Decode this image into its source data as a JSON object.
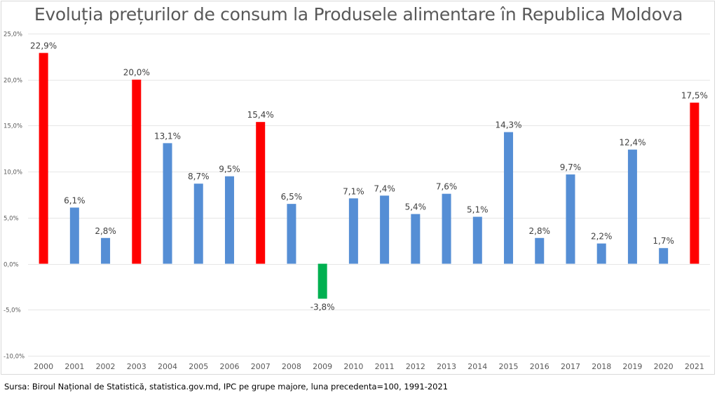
{
  "chart_data": {
    "type": "bar",
    "title": "Evoluția prețurilor de consum la Produsele alimentare în Republica Moldova",
    "xlabel": "",
    "ylabel": "",
    "ylim": [
      -10,
      25
    ],
    "yticks": [
      25,
      20,
      15,
      10,
      5,
      0,
      -5,
      -10
    ],
    "ytick_labels": [
      "25,0%",
      "20,0%",
      "15,0%",
      "10,0%",
      "5,0%",
      "0,0%",
      "-5,0%",
      "-10,0%"
    ],
    "grid": true,
    "legend": "none",
    "categories": [
      "2000",
      "2001",
      "2002",
      "2003",
      "2004",
      "2005",
      "2006",
      "2007",
      "2008",
      "2009",
      "2010",
      "2011",
      "2012",
      "2013",
      "2014",
      "2015",
      "2016",
      "2017",
      "2018",
      "2019",
      "2020",
      "2021"
    ],
    "values": [
      22.9,
      6.1,
      2.8,
      20.0,
      13.1,
      8.7,
      9.5,
      15.4,
      6.5,
      -3.8,
      7.1,
      7.4,
      5.4,
      7.6,
      5.1,
      14.3,
      2.8,
      9.7,
      2.2,
      12.4,
      1.7,
      17.5
    ],
    "data_labels": [
      "22,9%",
      "6,1%",
      "2,8%",
      "20,0%",
      "13,1%",
      "8,7%",
      "9,5%",
      "15,4%",
      "6,5%",
      "-3,8%",
      "7,1%",
      "7,4%",
      "5,4%",
      "7,6%",
      "5,1%",
      "14,3%",
      "2,8%",
      "9,7%",
      "2,2%",
      "12,4%",
      "1,7%",
      "17,5%"
    ],
    "bar_colors": [
      "#ff0000",
      "#558ed5",
      "#558ed5",
      "#ff0000",
      "#558ed5",
      "#558ed5",
      "#558ed5",
      "#ff0000",
      "#558ed5",
      "#00b050",
      "#558ed5",
      "#558ed5",
      "#558ed5",
      "#558ed5",
      "#558ed5",
      "#558ed5",
      "#558ed5",
      "#558ed5",
      "#558ed5",
      "#558ed5",
      "#558ed5",
      "#ff0000"
    ]
  },
  "colors": {
    "highlight": "#ff0000",
    "normal": "#558ed5",
    "negative": "#00b050",
    "grid": "#e6e6e6"
  },
  "source_note": "Sursa: Biroul Național de Statistică, statistica.gov.md,  IPC pe grupe majore, luna precedenta=100, 1991-2021"
}
